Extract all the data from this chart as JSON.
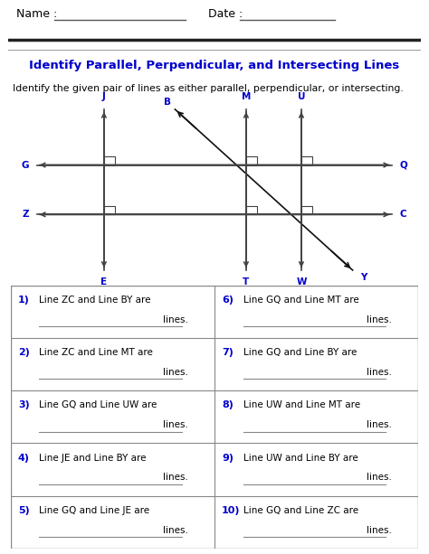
{
  "title": "Identify Parallel, Perpendicular, and Intersecting Lines",
  "subtitle": "Identify the given pair of lines as either parallel, perpendicular, or intersecting.",
  "name_label": "Name :",
  "date_label": "Date :",
  "bg_color": "#ffffff",
  "title_color": "#0000cc",
  "text_color": "#000000",
  "line_color": "#444444",
  "label_color": "#0000cc",
  "questions_left": [
    "Line ZC and Line BY are",
    "Line ZC and Line MT are",
    "Line GQ and Line UW are",
    "Line JE and Line BY are",
    "Line GQ and Line JE are"
  ],
  "questions_right": [
    "Line GQ and Line MT are",
    "Line GQ and Line BY are",
    "Line UW and Line MT are",
    "Line UW and Line BY are",
    "Line GQ and Line ZC are"
  ]
}
